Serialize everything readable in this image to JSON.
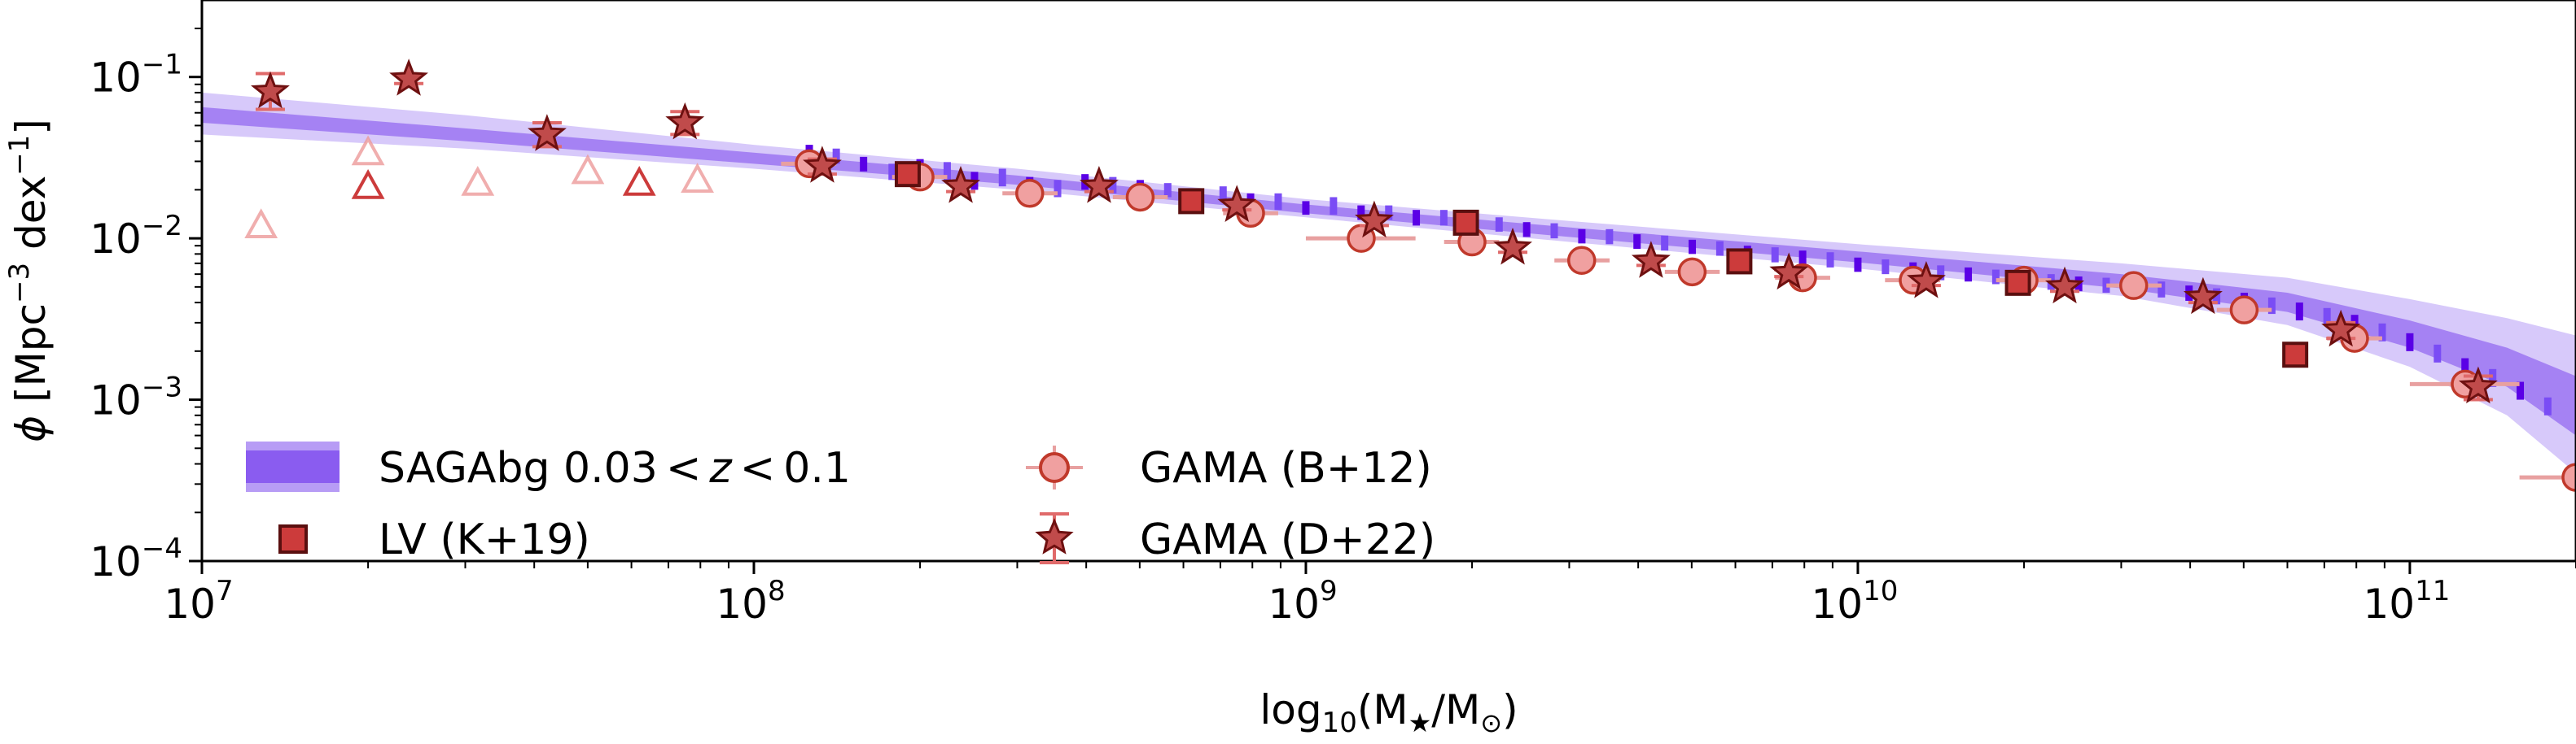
{
  "chart_data": {
    "type": "scatter",
    "xscale": "log",
    "yscale": "log",
    "xlim": [
      10000000,
      200000000000
    ],
    "ylim": [
      0.0001,
      0.3
    ],
    "grid": false,
    "legend_position": "lower-left",
    "xlabel": {
      "prefix": "log",
      "sub": "10",
      "open": "(M",
      "star": "★",
      "slash": "/M",
      "sun": "⊙",
      "close": ")"
    },
    "ylabel": {
      "phi": "ϕ",
      "open": " [Mpc",
      "m3": "−3",
      "dex": " dex",
      "m1": "−1",
      "close": "]"
    },
    "x_ticks": [
      {
        "value": 10000000,
        "base": "10",
        "exp": "7"
      },
      {
        "value": 100000000,
        "base": "10",
        "exp": "8"
      },
      {
        "value": 1000000000,
        "base": "10",
        "exp": "9"
      },
      {
        "value": 10000000000,
        "base": "10",
        "exp": "10"
      },
      {
        "value": 100000000000,
        "base": "10",
        "exp": "11"
      }
    ],
    "y_ticks": [
      {
        "value": 0.0001,
        "base": "10",
        "exp": "−4"
      },
      {
        "value": 0.001,
        "base": "10",
        "exp": "−3"
      },
      {
        "value": 0.01,
        "base": "10",
        "exp": "−2"
      },
      {
        "value": 0.1,
        "base": "10",
        "exp": "−1"
      }
    ],
    "saga_band": {
      "name": "SAGAbg 0.03 < z < 0.1",
      "legend_parts": [
        "SAGAbg 0.03",
        "<",
        "z",
        "<",
        "0.1"
      ],
      "color_inner": "#8a5cf0",
      "color_outer": "#b79cf5",
      "x": [
        10000000,
        30000000,
        100000000,
        300000000,
        1000000000,
        3000000000,
        10000000000,
        30000000000,
        60000000000,
        100000000000,
        150000000000,
        200000000000
      ],
      "outer_lo": [
        0.044,
        0.036,
        0.027,
        0.02,
        0.0135,
        0.0095,
        0.0065,
        0.0044,
        0.0029,
        0.0016,
        0.0008,
        0.00035
      ],
      "inner_lo": [
        0.052,
        0.04,
        0.029,
        0.0215,
        0.0143,
        0.0102,
        0.0071,
        0.0049,
        0.0035,
        0.0021,
        0.0012,
        0.0006
      ],
      "inner_hi": [
        0.065,
        0.048,
        0.034,
        0.0245,
        0.0162,
        0.0117,
        0.0083,
        0.006,
        0.0046,
        0.0031,
        0.0021,
        0.0014
      ],
      "outer_hi": [
        0.08,
        0.058,
        0.038,
        0.027,
        0.0175,
        0.0128,
        0.0092,
        0.007,
        0.0057,
        0.0042,
        0.0032,
        0.0025
      ]
    },
    "saga_bins": {
      "color_dark": "#5a00e6",
      "color_light": "#7a4cf5",
      "x": [
        126000000,
        141000000,
        158000000,
        178000000,
        200000000,
        224000000,
        251000000,
        282000000,
        316000000,
        355000000,
        398000000,
        447000000,
        501000000,
        562000000,
        631000000,
        708000000,
        794000000,
        891000000,
        1000000000,
        1122000000,
        1259000000,
        1413000000,
        1585000000,
        1778000000,
        1995000000,
        2239000000,
        2512000000,
        2818000000,
        3162000000,
        3548000000,
        3981000000,
        4467000000,
        5012000000,
        5623000000,
        6310000000,
        7079000000,
        7943000000,
        8913000000,
        10000000000,
        11220000000,
        12590000000,
        14130000000,
        15850000000,
        17780000000,
        19950000000,
        22390000000,
        25120000000,
        28180000000,
        31620000000,
        35480000000,
        39810000000,
        44670000000,
        50120000000,
        56230000000,
        63100000000,
        70790000000,
        79430000000,
        89130000000,
        100000000000,
        112200000000,
        125900000000,
        141300000000,
        158500000000,
        177800000000
      ],
      "y_lo": [
        0.031,
        0.029,
        0.026,
        0.023,
        0.024,
        0.023,
        0.02,
        0.021,
        0.019,
        0.018,
        0.02,
        0.019,
        0.018,
        0.018,
        0.016,
        0.017,
        0.015,
        0.015,
        0.014,
        0.014,
        0.013,
        0.013,
        0.012,
        0.012,
        0.0113,
        0.011,
        0.0102,
        0.01,
        0.0093,
        0.0092,
        0.0086,
        0.0084,
        0.008,
        0.0078,
        0.0073,
        0.0071,
        0.0068,
        0.0066,
        0.0062,
        0.006,
        0.0058,
        0.0055,
        0.0054,
        0.0052,
        0.005,
        0.0048,
        0.0047,
        0.0046,
        0.0045,
        0.0043,
        0.0041,
        0.0039,
        0.0036,
        0.0034,
        0.0031,
        0.0029,
        0.0026,
        0.0023,
        0.002,
        0.0017,
        0.0014,
        0.0012,
        0.001,
        0.0008
      ],
      "y_hi": [
        0.038,
        0.036,
        0.032,
        0.029,
        0.031,
        0.03,
        0.026,
        0.027,
        0.024,
        0.023,
        0.025,
        0.024,
        0.023,
        0.022,
        0.02,
        0.021,
        0.019,
        0.019,
        0.017,
        0.018,
        0.016,
        0.016,
        0.015,
        0.015,
        0.014,
        0.0135,
        0.0126,
        0.0124,
        0.0114,
        0.0114,
        0.0106,
        0.0104,
        0.0098,
        0.0096,
        0.009,
        0.0088,
        0.0084,
        0.0082,
        0.0076,
        0.0074,
        0.0071,
        0.0068,
        0.0066,
        0.0064,
        0.0062,
        0.006,
        0.0058,
        0.0057,
        0.0056,
        0.0054,
        0.0051,
        0.0049,
        0.0046,
        0.0043,
        0.004,
        0.0037,
        0.0034,
        0.003,
        0.0027,
        0.0023,
        0.0019,
        0.0017,
        0.0014,
        0.0011
      ]
    },
    "lv": {
      "name": "LV (K+19)",
      "color_fill": "#cc3b3b",
      "color_edge": "#5a0f0f",
      "squares": [
        {
          "x": 190000000,
          "y": 0.025
        },
        {
          "x": 620000000,
          "y": 0.017
        },
        {
          "x": 1950000000,
          "y": 0.0125
        },
        {
          "x": 6100000000,
          "y": 0.0072
        },
        {
          "x": 19500000000,
          "y": 0.0053
        },
        {
          "x": 62000000000,
          "y": 0.0019
        }
      ],
      "triangles": [
        {
          "x": 12800000,
          "y": 0.012,
          "shade": "faint"
        },
        {
          "x": 20000000,
          "y": 0.034,
          "shade": "faint"
        },
        {
          "x": 20000000,
          "y": 0.021,
          "shade": "strong"
        },
        {
          "x": 31600000,
          "y": 0.022,
          "shade": "faint"
        },
        {
          "x": 50000000,
          "y": 0.026,
          "shade": "faint"
        },
        {
          "x": 62000000,
          "y": 0.022,
          "shade": "strong"
        },
        {
          "x": 79000000,
          "y": 0.023,
          "shade": "faint"
        }
      ]
    },
    "gama_b12": {
      "name": "GAMA (B+12)",
      "color_fill": "#f0a0a0",
      "color_edge": "#c0392b",
      "color_err": "#e8a0a0",
      "points": [
        {
          "x": 126000000,
          "y": 0.029,
          "xlo": 112000000,
          "xhi": 141000000
        },
        {
          "x": 200000000,
          "y": 0.024,
          "xlo": 178000000,
          "xhi": 224000000
        },
        {
          "x": 316000000,
          "y": 0.019,
          "xlo": 282000000,
          "xhi": 355000000
        },
        {
          "x": 501000000,
          "y": 0.018,
          "xlo": 447000000,
          "xhi": 562000000
        },
        {
          "x": 794000000,
          "y": 0.0143,
          "xlo": 708000000,
          "xhi": 891000000
        },
        {
          "x": 1260000000,
          "y": 0.01,
          "xlo": 1000000000,
          "xhi": 1580000000
        },
        {
          "x": 2000000000,
          "y": 0.0095,
          "xlo": 1780000000,
          "xhi": 2240000000
        },
        {
          "x": 3160000000,
          "y": 0.0073,
          "xlo": 2820000000,
          "xhi": 3550000000
        },
        {
          "x": 5010000000,
          "y": 0.0062,
          "xlo": 4470000000,
          "xhi": 5620000000
        },
        {
          "x": 7940000000,
          "y": 0.0057,
          "xlo": 7080000000,
          "xhi": 8910000000
        },
        {
          "x": 12600000000,
          "y": 0.0055,
          "xlo": 11200000000,
          "xhi": 14100000000
        },
        {
          "x": 20000000000,
          "y": 0.0055,
          "xlo": 17800000000,
          "xhi": 22400000000
        },
        {
          "x": 31600000000,
          "y": 0.0051,
          "xlo": 28200000000,
          "xhi": 35500000000
        },
        {
          "x": 50100000000,
          "y": 0.0036,
          "xlo": 44700000000,
          "xhi": 56200000000
        },
        {
          "x": 79400000000,
          "y": 0.0024,
          "xlo": 70800000000,
          "xhi": 89100000000
        },
        {
          "x": 126000000000,
          "y": 0.00125,
          "xlo": 100000000000,
          "xhi": 158000000000
        },
        {
          "x": 200000000000,
          "y": 0.00033,
          "xlo": 158000000000,
          "xhi": 200000000000
        }
      ]
    },
    "gama_d22": {
      "name": "GAMA (D+22)",
      "color_fill": "#c04b4b",
      "color_edge": "#6e1010",
      "color_err": "#e06a6a",
      "points": [
        {
          "x": 13300000,
          "y": 0.081,
          "ylo": 0.063,
          "yhi": 0.105
        },
        {
          "x": 23700000,
          "y": 0.097,
          "ylo": 0.091,
          "yhi": 0.103
        },
        {
          "x": 42200000,
          "y": 0.044,
          "ylo": 0.037,
          "yhi": 0.052
        },
        {
          "x": 75000000,
          "y": 0.052,
          "ylo": 0.044,
          "yhi": 0.061
        },
        {
          "x": 133000000,
          "y": 0.028,
          "ylo": 0.025,
          "yhi": 0.031
        },
        {
          "x": 237000000,
          "y": 0.021,
          "ylo": 0.0195,
          "yhi": 0.0225
        },
        {
          "x": 422000000,
          "y": 0.021,
          "ylo": 0.0195,
          "yhi": 0.0225
        },
        {
          "x": 750000000,
          "y": 0.016,
          "ylo": 0.015,
          "yhi": 0.017
        },
        {
          "x": 1330000000,
          "y": 0.0128,
          "ylo": 0.012,
          "yhi": 0.0136
        },
        {
          "x": 2370000000,
          "y": 0.0087,
          "ylo": 0.0082,
          "yhi": 0.0092
        },
        {
          "x": 4220000000,
          "y": 0.0072,
          "ylo": 0.0068,
          "yhi": 0.0076
        },
        {
          "x": 7500000000,
          "y": 0.0061,
          "ylo": 0.0058,
          "yhi": 0.0064
        },
        {
          "x": 13300000000,
          "y": 0.0054,
          "ylo": 0.0051,
          "yhi": 0.0057
        },
        {
          "x": 23700000000,
          "y": 0.005,
          "ylo": 0.0047,
          "yhi": 0.0053
        },
        {
          "x": 42200000000,
          "y": 0.0043,
          "ylo": 0.004,
          "yhi": 0.0046
        },
        {
          "x": 75000000000,
          "y": 0.0027,
          "ylo": 0.0024,
          "yhi": 0.003
        },
        {
          "x": 133000000000,
          "y": 0.0012,
          "ylo": 0.001,
          "yhi": 0.0014
        }
      ]
    }
  }
}
